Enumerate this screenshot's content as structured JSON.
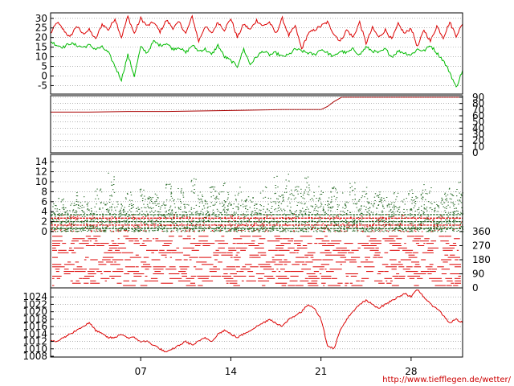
{
  "credit": "http://www.tiefflegen.de/wetter/",
  "x_axis": {
    "day_range": [
      0,
      32
    ],
    "ticks": [
      {
        "day": 7,
        "label": "07"
      },
      {
        "day": 14,
        "label": "14"
      },
      {
        "day": 21,
        "label": "21"
      },
      {
        "day": 28,
        "label": "28"
      }
    ]
  },
  "colors": {
    "red": "#dd0000",
    "green": "#00bb00",
    "dark_red": "#aa0000",
    "axis": "#000000",
    "grid": "#888888"
  },
  "chart_data": [
    {
      "panel": "temperature",
      "type": "line",
      "ylim": [
        -9,
        32
      ],
      "y_ticks": [
        "30",
        "25",
        "20",
        "15",
        "10",
        "5",
        "0",
        "-5"
      ],
      "y_tick_values": [
        30,
        25,
        20,
        15,
        10,
        5,
        0,
        -5
      ],
      "tick_side": "left",
      "grid": true,
      "series": [
        {
          "color": "red",
          "values": [
            22,
            28,
            24,
            20,
            26,
            22,
            24,
            19,
            27,
            24,
            30,
            20,
            31,
            22,
            30,
            26,
            28,
            23,
            29,
            25,
            28,
            22,
            31,
            18,
            26,
            22,
            28,
            24,
            30,
            20,
            27,
            24,
            29,
            26,
            28,
            22,
            30,
            21,
            26,
            14,
            22,
            24,
            26,
            28,
            22,
            18,
            24,
            20,
            28,
            17,
            25,
            20,
            24,
            19,
            27,
            22,
            25,
            15,
            24,
            18,
            26,
            20,
            28,
            21,
            27
          ]
        },
        {
          "color": "green",
          "values": [
            18,
            16,
            15,
            17,
            16,
            15,
            16,
            14,
            15,
            12,
            5,
            -2,
            11,
            0,
            15,
            12,
            18,
            16,
            17,
            14,
            15,
            12,
            16,
            13,
            14,
            11,
            16,
            10,
            8,
            5,
            14,
            6,
            10,
            13,
            11,
            12,
            10,
            11,
            14,
            13,
            12,
            11,
            14,
            12,
            10,
            13,
            12,
            14,
            11,
            15,
            13,
            12,
            14,
            10,
            13,
            12,
            11,
            14,
            13,
            16,
            12,
            8,
            2,
            -6,
            3
          ]
        }
      ]
    },
    {
      "panel": "humidity",
      "type": "line",
      "ylim": [
        0,
        90
      ],
      "y_ticks": [
        "90",
        "80",
        "70",
        "60",
        "50",
        "40",
        "30",
        "20",
        "10",
        "0"
      ],
      "y_tick_values": [
        90,
        80,
        70,
        60,
        50,
        40,
        30,
        20,
        10,
        0
      ],
      "tick_side": "right",
      "grid": true,
      "series": [
        {
          "color": "dark_red",
          "x": [
            0,
            3,
            6,
            9,
            12,
            15,
            18,
            21,
            21.5,
            22,
            22.6,
            32
          ],
          "values": [
            66,
            66,
            67,
            67,
            68,
            69,
            70,
            70,
            75,
            83,
            90,
            90
          ]
        }
      ]
    },
    {
      "panel": "wind_speed",
      "type": "scatter",
      "ylim": [
        0,
        15
      ],
      "y_ticks": [
        "14",
        "12",
        "10",
        "8",
        "6",
        "4",
        "2",
        "0"
      ],
      "y_tick_values": [
        14,
        12,
        10,
        8,
        6,
        4,
        2,
        0
      ],
      "tick_side": "left",
      "grid": true,
      "peaks": [
        6,
        7,
        5,
        6,
        8,
        7,
        5,
        9,
        6,
        12,
        6,
        7,
        8,
        5,
        9,
        7,
        8,
        6,
        10,
        7,
        9,
        6,
        11,
        8,
        7,
        9,
        8,
        10,
        6,
        9,
        7,
        8,
        6,
        9,
        7,
        12,
        8,
        13,
        10,
        9,
        11,
        8,
        10,
        7,
        9,
        8,
        6,
        10,
        7,
        9,
        6,
        8,
        7,
        6,
        8,
        7,
        9,
        8,
        10,
        9,
        6,
        7,
        9,
        8,
        10
      ]
    },
    {
      "panel": "wind_direction",
      "type": "scatter",
      "ylim": [
        0,
        360
      ],
      "y_ticks": [
        "360",
        "270",
        "180",
        "90",
        "0"
      ],
      "y_tick_values": [
        360,
        270,
        180,
        90,
        0
      ],
      "tick_side": "right",
      "grid": false
    },
    {
      "panel": "pressure",
      "type": "line",
      "ylim": [
        1008,
        1026
      ],
      "y_ticks": [
        "1024",
        "1022",
        "1020",
        "1018",
        "1016",
        "1014",
        "1012",
        "1010",
        "1008"
      ],
      "y_tick_values": [
        1024,
        1022,
        1020,
        1018,
        1016,
        1014,
        1012,
        1010,
        1008
      ],
      "tick_side": "left",
      "grid": true,
      "series": [
        {
          "color": "red",
          "values": [
            1012,
            1012,
            1013,
            1014,
            1015,
            1016,
            1017,
            1015,
            1014,
            1013,
            1013,
            1014,
            1013,
            1013,
            1012,
            1012,
            1011,
            1010,
            1009,
            1010,
            1011,
            1012,
            1011,
            1012,
            1013,
            1012,
            1014,
            1015,
            1014,
            1013,
            1014,
            1015,
            1016,
            1017,
            1018,
            1017,
            1016,
            1018,
            1019,
            1020,
            1022,
            1021,
            1018,
            1011,
            1010,
            1015,
            1018,
            1020,
            1022,
            1023,
            1022,
            1021,
            1022,
            1023,
            1024,
            1025,
            1024,
            1026,
            1024,
            1022,
            1021,
            1019,
            1017,
            1018,
            1017
          ]
        }
      ]
    }
  ]
}
